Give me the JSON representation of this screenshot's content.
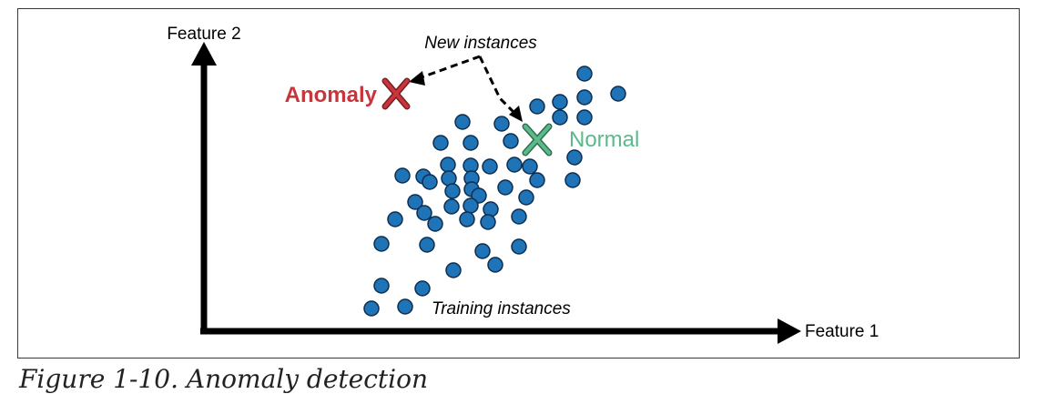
{
  "axes": {
    "y_label": "Feature 2",
    "x_label": "Feature 1"
  },
  "annotations": {
    "new_instances": "New instances",
    "training_instances": "Training instances",
    "anomaly": "Anomaly",
    "normal": "Normal"
  },
  "caption": "Figure 1-10. Anomaly detection",
  "colors": {
    "point_fill": "#1f74b8",
    "point_stroke": "#0d2d4f",
    "anomaly": "#c8353b",
    "normal": "#5bb98a",
    "axis": "#000000"
  }
}
